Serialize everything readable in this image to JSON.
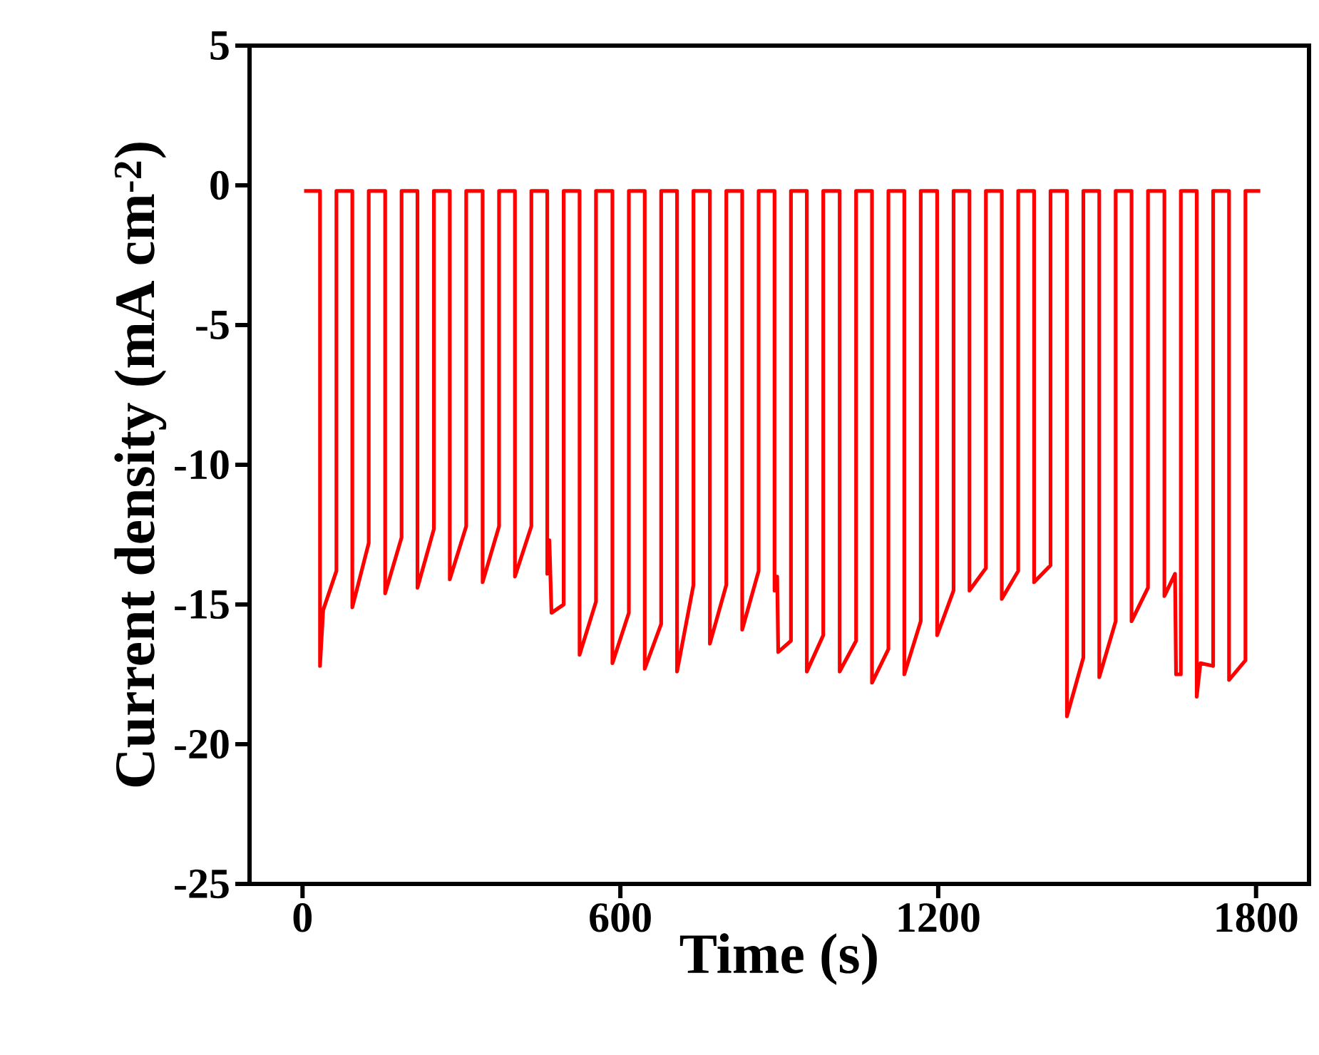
{
  "chart_data": {
    "type": "line",
    "xlabel": "Time (s)",
    "ylabel": "Current density (mA cm$^{-2}$)",
    "color": "#ff0000",
    "xlim": [
      -100,
      1900
    ],
    "ylim": [
      -25,
      5
    ],
    "xticks": [
      0,
      600,
      1200,
      1800
    ],
    "yticks": [
      5,
      0,
      -5,
      -10,
      -15,
      -20,
      -25
    ],
    "x": [
      3,
      33,
      33,
      39,
      64,
      64,
      94,
      94,
      125,
      125,
      156,
      156,
      187,
      187,
      217,
      217,
      248,
      248,
      278,
      278,
      309,
      309,
      340,
      340,
      371,
      371,
      401,
      401,
      432,
      432,
      462,
      462,
      466,
      470,
      493,
      493,
      523,
      523,
      554,
      554,
      585,
      585,
      616,
      616,
      646,
      646,
      677,
      677,
      707,
      707,
      738,
      738,
      769,
      769,
      800,
      800,
      830,
      830,
      861,
      861,
      891,
      891,
      896,
      898,
      922,
      922,
      952,
      952,
      983,
      983,
      1014,
      1014,
      1045,
      1045,
      1075,
      1075,
      1106,
      1106,
      1136,
      1136,
      1167,
      1167,
      1198,
      1198,
      1229,
      1229,
      1259,
      1259,
      1290,
      1290,
      1320,
      1320,
      1351,
      1351,
      1381,
      1381,
      1412,
      1412,
      1443,
      1443,
      1474,
      1474,
      1504,
      1504,
      1535,
      1535,
      1565,
      1565,
      1596,
      1596,
      1627,
      1627,
      1647,
      1649,
      1658,
      1658,
      1688,
      1688,
      1695,
      1719,
      1719,
      1749,
      1749,
      1780,
      1780,
      1808
    ],
    "values": [
      -0.2,
      -0.2,
      -17.2,
      -15.2,
      -13.8,
      -0.2,
      -0.2,
      -15.1,
      -12.8,
      -0.2,
      -0.2,
      -14.6,
      -12.6,
      -0.2,
      -0.2,
      -14.4,
      -12.3,
      -0.2,
      -0.2,
      -14.1,
      -12.2,
      -0.2,
      -0.2,
      -14.2,
      -12.2,
      -0.2,
      -0.2,
      -14.0,
      -12.2,
      -0.2,
      -0.2,
      -13.9,
      -12.7,
      -15.3,
      -15.0,
      -0.2,
      -0.2,
      -16.8,
      -14.9,
      -0.2,
      -0.2,
      -17.1,
      -15.3,
      -0.2,
      -0.2,
      -17.3,
      -15.7,
      -0.2,
      -0.2,
      -17.4,
      -14.3,
      -0.2,
      -0.2,
      -16.4,
      -14.3,
      -0.2,
      -0.2,
      -15.9,
      -13.8,
      -0.2,
      -0.2,
      -14.5,
      -14.0,
      -16.7,
      -16.3,
      -0.2,
      -0.2,
      -17.4,
      -16.1,
      -0.2,
      -0.2,
      -17.4,
      -16.3,
      -0.2,
      -0.2,
      -17.8,
      -16.6,
      -0.2,
      -0.2,
      -17.5,
      -15.6,
      -0.2,
      -0.2,
      -16.1,
      -14.5,
      -0.2,
      -0.2,
      -14.5,
      -13.7,
      -0.2,
      -0.2,
      -14.8,
      -13.8,
      -0.2,
      -0.2,
      -14.2,
      -13.6,
      -0.2,
      -0.2,
      -19.0,
      -16.9,
      -0.2,
      -0.2,
      -17.6,
      -15.6,
      -0.2,
      -0.2,
      -15.6,
      -14.4,
      -0.2,
      -0.2,
      -14.7,
      -13.9,
      -17.5,
      -17.5,
      -0.2,
      -0.2,
      -18.3,
      -17.1,
      -17.2,
      -0.2,
      -0.2,
      -17.7,
      -17.0,
      -0.2,
      -0.2
    ]
  }
}
